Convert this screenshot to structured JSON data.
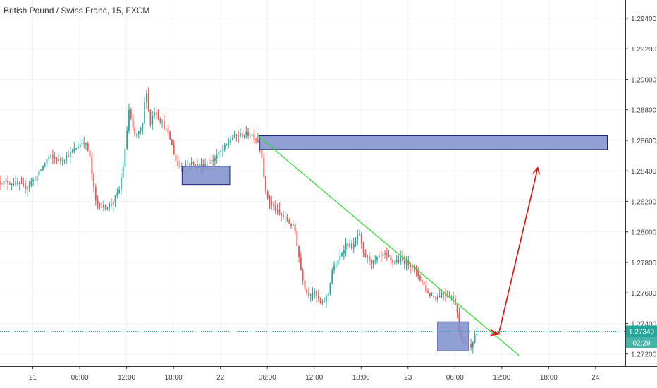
{
  "chart_data": {
    "type": "candlestick",
    "title": "British Pound / Swiss Franc, 15, FXCM",
    "y_axis": {
      "position": "right",
      "ylim": [
        1.2712,
        1.2952
      ],
      "ticks": [
        "1.29400",
        "1.29200",
        "1.29000",
        "1.28800",
        "1.28600",
        "1.28400",
        "1.28200",
        "1.28000",
        "1.27800",
        "1.27600",
        "1.27400",
        "1.27200"
      ],
      "tick_values": [
        1.294,
        1.292,
        1.29,
        1.288,
        1.286,
        1.284,
        1.282,
        1.28,
        1.278,
        1.276,
        1.274,
        1.272
      ]
    },
    "x_axis": {
      "tick_labels": [
        "21",
        "06:00",
        "12:00",
        "18:00",
        "22",
        "06:00",
        "12:00",
        "18:00",
        "23",
        "06:00",
        "12:00",
        "18:00",
        "24"
      ],
      "tick_positions_hours": [
        0,
        6,
        12,
        18,
        24,
        30,
        36,
        42,
        48,
        54,
        60,
        66,
        72
      ],
      "xlim_hours": [
        -4.2,
        75.8
      ]
    },
    "current_price": "1.27349",
    "countdown": "02:29",
    "colors": {
      "up": "#26a69a",
      "down": "#ef5350",
      "zone_fill": "#7c8fcc",
      "zone_stroke": "#1a237e",
      "trendline": "#33dd33",
      "arrow": "#e01010",
      "price_tag": "#26a69a",
      "price_line": "#26a69a"
    },
    "price_path": [
      [
        -4.2,
        1.2833
      ],
      [
        -2.5,
        1.2832
      ],
      [
        -1,
        1.2829
      ],
      [
        0.5,
        1.2836
      ],
      [
        2,
        1.2849
      ],
      [
        3.5,
        1.2847
      ],
      [
        5,
        1.2852
      ],
      [
        6.5,
        1.286
      ],
      [
        7.2,
        1.2852
      ],
      [
        8,
        1.282
      ],
      [
        9,
        1.2816
      ],
      [
        10,
        1.2818
      ],
      [
        11,
        1.2826
      ],
      [
        11.7,
        1.2848
      ],
      [
        12.3,
        1.288
      ],
      [
        13,
        1.2862
      ],
      [
        14,
        1.2868
      ],
      [
        14.5,
        1.2895
      ],
      [
        15,
        1.287
      ],
      [
        15.5,
        1.288
      ],
      [
        16.5,
        1.2872
      ],
      [
        17.5,
        1.2862
      ],
      [
        18.5,
        1.2843
      ],
      [
        20,
        1.2845
      ],
      [
        21.5,
        1.2843
      ],
      [
        23,
        1.2847
      ],
      [
        24.5,
        1.2855
      ],
      [
        25.5,
        1.2862
      ],
      [
        27,
        1.2864
      ],
      [
        28,
        1.2864
      ],
      [
        28.8,
        1.286
      ],
      [
        29.3,
        1.285
      ],
      [
        29.8,
        1.2825
      ],
      [
        30.5,
        1.2818
      ],
      [
        31.5,
        1.2812
      ],
      [
        32.5,
        1.2808
      ],
      [
        33.5,
        1.2802
      ],
      [
        34.3,
        1.2775
      ],
      [
        35,
        1.276
      ],
      [
        36,
        1.276
      ],
      [
        37,
        1.2752
      ],
      [
        37.8,
        1.276
      ],
      [
        38.3,
        1.2775
      ],
      [
        39,
        1.278
      ],
      [
        40,
        1.2792
      ],
      [
        41,
        1.279
      ],
      [
        41.7,
        1.28
      ],
      [
        42.3,
        1.2785
      ],
      [
        43.5,
        1.278
      ],
      [
        45,
        1.2785
      ],
      [
        46,
        1.278
      ],
      [
        47,
        1.2782
      ],
      [
        48.5,
        1.2778
      ],
      [
        49.5,
        1.277
      ],
      [
        50.5,
        1.276
      ],
      [
        51.5,
        1.2757
      ],
      [
        52.5,
        1.276
      ],
      [
        53.5,
        1.2758
      ],
      [
        54.2,
        1.2752
      ],
      [
        54.7,
        1.273
      ],
      [
        55.3,
        1.2728
      ],
      [
        56,
        1.2725
      ],
      [
        56.5,
        1.2732
      ],
      [
        57,
        1.2735
      ]
    ],
    "annotations": {
      "zones": [
        {
          "x0_hours": 19.1,
          "x1_hours": 25.2,
          "y0": 1.2843,
          "y1": 1.2831
        },
        {
          "x0_hours": 29,
          "x1_hours": 73.5,
          "y0": 1.2863,
          "y1": 1.2854
        },
        {
          "x0_hours": 51.8,
          "x1_hours": 55.8,
          "y0": 1.2741,
          "y1": 1.2722
        }
      ],
      "trendline": {
        "from": [
          28.8,
          1.2863
        ],
        "to": [
          62.2,
          1.2719
        ]
      },
      "arrow": {
        "points": [
          [
            58.9,
            1.2734
          ],
          [
            59.6,
            1.2733
          ],
          [
            64.6,
            1.2842
          ]
        ]
      }
    }
  }
}
